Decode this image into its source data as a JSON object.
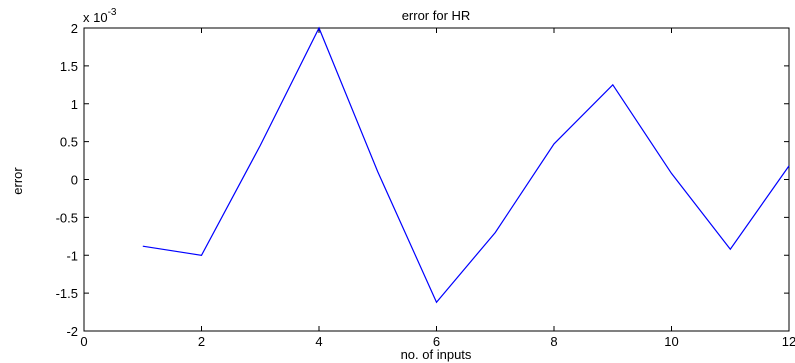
{
  "chart_data": {
    "type": "line",
    "title": "error for HR",
    "xlabel": "no. of inputs",
    "ylabel": "error",
    "exponent_label": "x 10",
    "exponent_power": "-3",
    "xlim": [
      0,
      12
    ],
    "ylim": [
      -2,
      2
    ],
    "x_ticks": [
      0,
      2,
      4,
      6,
      8,
      10,
      12
    ],
    "y_ticks": [
      -2,
      -1.5,
      -1,
      -0.5,
      0,
      0.5,
      1,
      1.5,
      2
    ],
    "grid": false,
    "series": [
      {
        "color": "#0000ff",
        "x": [
          1,
          2,
          3,
          4,
          5,
          6,
          7,
          8,
          9,
          10,
          11,
          12
        ],
        "y": [
          -0.88,
          -1.0,
          0.45,
          2.0,
          0.1,
          -1.62,
          -0.7,
          0.47,
          1.25,
          0.08,
          -0.92,
          0.18
        ]
      }
    ]
  }
}
